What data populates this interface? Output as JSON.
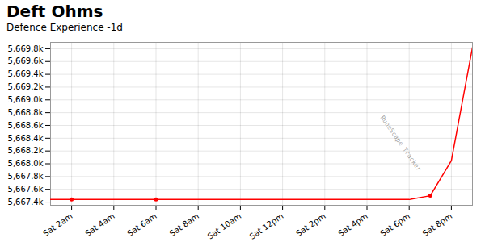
{
  "chart_data": {
    "type": "line",
    "title": "Deft Ohms",
    "subtitle": "Defence Experience -1d",
    "x": [
      0,
      1,
      3,
      5,
      7,
      9,
      11,
      13,
      15,
      17,
      18,
      19,
      20
    ],
    "values": [
      5667440,
      5667440,
      5667440,
      5667440,
      5667440,
      5667440,
      5667440,
      5667440,
      5667440,
      5667440,
      5667500,
      5668050,
      5669820
    ],
    "color": "#ff0000",
    "markers": {
      "x": [
        1,
        5,
        18
      ],
      "values": [
        5667440,
        5667440,
        5667500
      ]
    },
    "xlim": [
      0,
      20
    ],
    "xticks": [
      {
        "value": 1,
        "label": "Sat 2am"
      },
      {
        "value": 3,
        "label": "Sat 4am"
      },
      {
        "value": 5,
        "label": "Sat 6am"
      },
      {
        "value": 7,
        "label": "Sat 8am"
      },
      {
        "value": 9,
        "label": "Sat 10am"
      },
      {
        "value": 11,
        "label": "Sat 12pm"
      },
      {
        "value": 13,
        "label": "Sat 2pm"
      },
      {
        "value": 15,
        "label": "Sat 4pm"
      },
      {
        "value": 17,
        "label": "Sat 6pm"
      },
      {
        "value": 19,
        "label": "Sat 8pm"
      }
    ],
    "ylim": [
      5667350,
      5669900
    ],
    "yticks": [
      {
        "value": 5667400,
        "label": "5,667.4k"
      },
      {
        "value": 5667600,
        "label": "5,667.6k"
      },
      {
        "value": 5667800,
        "label": "5,667.8k"
      },
      {
        "value": 5668000,
        "label": "5,668.0k"
      },
      {
        "value": 5668200,
        "label": "5,668.2k"
      },
      {
        "value": 5668400,
        "label": "5,668.4k"
      },
      {
        "value": 5668600,
        "label": "5,668.6k"
      },
      {
        "value": 5668800,
        "label": "5,668.8k"
      },
      {
        "value": 5669000,
        "label": "5,669.0k"
      },
      {
        "value": 5669200,
        "label": "5,669.2k"
      },
      {
        "value": 5669400,
        "label": "5,669.4k"
      },
      {
        "value": 5669600,
        "label": "5,669.6k"
      },
      {
        "value": 5669800,
        "label": "5,669.8k"
      }
    ],
    "grid": true,
    "annotations": [
      {
        "text": "RuneScape Tracker"
      }
    ]
  }
}
